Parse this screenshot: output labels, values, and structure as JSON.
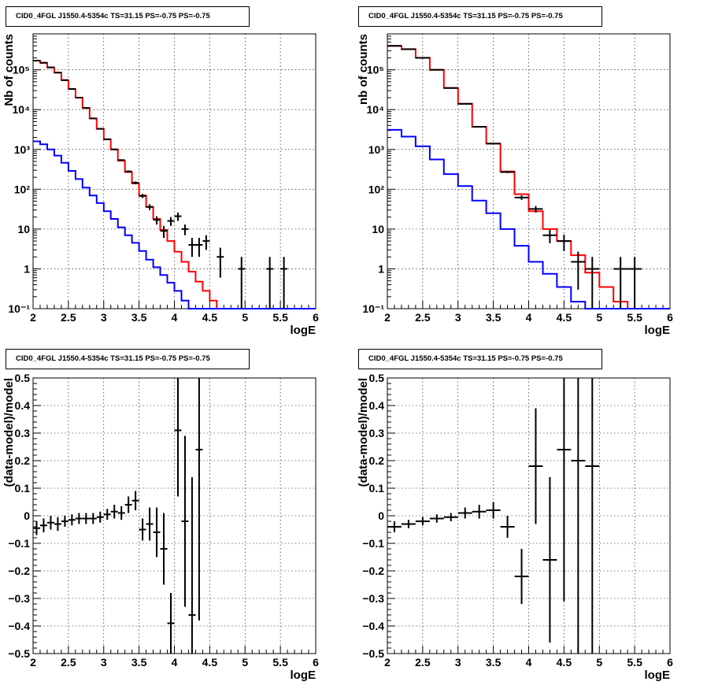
{
  "chart_data": [
    {
      "type": "line",
      "title": "CID0_4FGL J1550.4-5354c TS=31.15 PS=-0.75 PS=-0.75",
      "xlabel": "logE",
      "ylabel": "Nb of counts",
      "xlim": [
        2,
        6
      ],
      "ylim": [
        0.1,
        800000
      ],
      "y_scale": "log",
      "grid": true,
      "x_ticks": [
        "2",
        "2.5",
        "3",
        "3.5",
        "4",
        "4.5",
        "5",
        "5.5",
        "6"
      ],
      "y_ticks": [
        "10⁻¹",
        "1",
        "10",
        "10²",
        "10³",
        "10⁴",
        "10⁵"
      ],
      "bin_edges": [
        2.0,
        2.1,
        2.2,
        2.3,
        2.4,
        2.5,
        2.6,
        2.7,
        2.8,
        2.9,
        3.0,
        3.1,
        3.2,
        3.3,
        3.4,
        3.5,
        3.6,
        3.7,
        3.8,
        3.9,
        4.0,
        4.1,
        4.2,
        4.3,
        4.4,
        4.5,
        4.6,
        4.7,
        4.8,
        4.9,
        5.0,
        5.1,
        5.2,
        5.3,
        5.4,
        5.5,
        5.6,
        5.7,
        5.8,
        5.9,
        6.0
      ],
      "series": [
        {
          "color": "#ff0000",
          "values": [
            170000,
            150000,
            115000,
            85000,
            55000,
            33000,
            20000,
            11000,
            6000,
            3300,
            1800,
            1000,
            520,
            270,
            140,
            70,
            36,
            18,
            9.5,
            5,
            2.7,
            1.5,
            0.85,
            0.48,
            0.28,
            0.16,
            0.1,
            0.06,
            0.05,
            0.05,
            0.05,
            0.05,
            0.05,
            0.05,
            0.05,
            0.05,
            0.05,
            0.05,
            0.05,
            0.05
          ]
        },
        {
          "color": "#0000ff",
          "values": [
            1600,
            1350,
            1000,
            700,
            460,
            290,
            180,
            110,
            70,
            45,
            28,
            18,
            11,
            7,
            4.5,
            2.8,
            1.7,
            1.1,
            0.7,
            0.45,
            0.28,
            0.16,
            0.1,
            0.06,
            0.05,
            0.05,
            0.05,
            0.05,
            0.05,
            0.05,
            0.05,
            0.05,
            0.05,
            0.05,
            0.05,
            0.05,
            0.05,
            0.05,
            0.05,
            0.05
          ]
        }
      ],
      "points": [
        {
          "x": 2.05,
          "y": 170000,
          "xerr": 0.05,
          "ylo": 169600,
          "yhi": 170400
        },
        {
          "x": 2.15,
          "y": 150000,
          "xerr": 0.05,
          "ylo": 149600,
          "yhi": 150400
        },
        {
          "x": 2.25,
          "y": 115000,
          "xerr": 0.05,
          "ylo": 114700,
          "yhi": 115300
        },
        {
          "x": 2.35,
          "y": 85000,
          "xerr": 0.05,
          "ylo": 84700,
          "yhi": 85300
        },
        {
          "x": 2.45,
          "y": 55000,
          "xerr": 0.05,
          "ylo": 54760,
          "yhi": 55240
        },
        {
          "x": 2.55,
          "y": 33000,
          "xerr": 0.05,
          "ylo": 32800,
          "yhi": 33200
        },
        {
          "x": 2.65,
          "y": 20000,
          "xerr": 0.05,
          "ylo": 19860,
          "yhi": 20140
        },
        {
          "x": 2.75,
          "y": 11000,
          "xerr": 0.05,
          "ylo": 10900,
          "yhi": 11100
        },
        {
          "x": 2.85,
          "y": 6000,
          "xerr": 0.05,
          "ylo": 5920,
          "yhi": 6080
        },
        {
          "x": 2.95,
          "y": 3300,
          "xerr": 0.05,
          "ylo": 3240,
          "yhi": 3360
        },
        {
          "x": 3.05,
          "y": 1800,
          "xerr": 0.05,
          "ylo": 1760,
          "yhi": 1840
        },
        {
          "x": 3.15,
          "y": 1000,
          "xerr": 0.05,
          "ylo": 970,
          "yhi": 1030
        },
        {
          "x": 3.25,
          "y": 540,
          "xerr": 0.05,
          "ylo": 517,
          "yhi": 563
        },
        {
          "x": 3.35,
          "y": 280,
          "xerr": 0.05,
          "ylo": 263,
          "yhi": 297
        },
        {
          "x": 3.45,
          "y": 145,
          "xerr": 0.05,
          "ylo": 133,
          "yhi": 157
        },
        {
          "x": 3.55,
          "y": 68,
          "xerr": 0.05,
          "ylo": 60,
          "yhi": 76
        },
        {
          "x": 3.65,
          "y": 36,
          "xerr": 0.05,
          "ylo": 30,
          "yhi": 42
        },
        {
          "x": 3.75,
          "y": 17,
          "xerr": 0.05,
          "ylo": 13,
          "yhi": 21
        },
        {
          "x": 3.85,
          "y": 9,
          "xerr": 0.05,
          "ylo": 6,
          "yhi": 12
        },
        {
          "x": 3.95,
          "y": 16,
          "xerr": 0.05,
          "ylo": 12,
          "yhi": 20
        },
        {
          "x": 4.05,
          "y": 21,
          "xerr": 0.05,
          "ylo": 16,
          "yhi": 26
        },
        {
          "x": 4.15,
          "y": 10,
          "xerr": 0.05,
          "ylo": 7,
          "yhi": 13
        },
        {
          "x": 4.25,
          "y": 4,
          "xerr": 0.05,
          "ylo": 2,
          "yhi": 6
        },
        {
          "x": 4.35,
          "y": 4,
          "xerr": 0.05,
          "ylo": 2,
          "yhi": 6
        },
        {
          "x": 4.45,
          "y": 5,
          "xerr": 0.05,
          "ylo": 3,
          "yhi": 7
        },
        {
          "x": 4.65,
          "y": 2,
          "xerr": 0.05,
          "ylo": 0.6,
          "yhi": 3.4
        },
        {
          "x": 4.95,
          "y": 1,
          "xerr": 0.05,
          "ylo": 0.1,
          "yhi": 2
        },
        {
          "x": 5.35,
          "y": 1,
          "xerr": 0.05,
          "ylo": 0.1,
          "yhi": 2
        },
        {
          "x": 5.55,
          "y": 1,
          "xerr": 0.05,
          "ylo": 0.1,
          "yhi": 2
        }
      ]
    },
    {
      "type": "line",
      "title": "CID0_4FGL J1550.4-5354c TS=31.15 PS=-0.75 PS=-0.75",
      "xlabel": "logE",
      "ylabel": "nb of counts",
      "xlim": [
        2,
        6
      ],
      "ylim": [
        0.1,
        800000
      ],
      "y_scale": "log",
      "grid": true,
      "x_ticks": [
        "2",
        "2.5",
        "3",
        "3.5",
        "4",
        "4.5",
        "5",
        "5.5",
        "6"
      ],
      "y_ticks": [
        "10⁻¹",
        "1",
        "10",
        "10²",
        "10³",
        "10⁴",
        "10⁵"
      ],
      "bin_edges": [
        2.0,
        2.2,
        2.4,
        2.6,
        2.8,
        3.0,
        3.2,
        3.4,
        3.6,
        3.8,
        4.0,
        4.2,
        4.4,
        4.6,
        4.8,
        5.0,
        5.2,
        5.4,
        5.6,
        5.8,
        6.0
      ],
      "series": [
        {
          "color": "#ff0000",
          "values": [
            400000,
            330000,
            200000,
            100000,
            35000,
            14000,
            3700,
            1400,
            280,
            75,
            28,
            10,
            5,
            2.2,
            0.8,
            0.35,
            0.15,
            0.1,
            0.05,
            0.05
          ]
        },
        {
          "color": "#0000ff",
          "values": [
            3100,
            2100,
            1200,
            560,
            240,
            120,
            52,
            25,
            10,
            3.8,
            1.5,
            0.75,
            0.35,
            0.15,
            0.05,
            0.05,
            0.05,
            0.05,
            0.05,
            0.05
          ]
        }
      ],
      "points": [
        {
          "x": 2.1,
          "y": 400000,
          "xerr": 0.1,
          "ylo": 399000,
          "yhi": 401000
        },
        {
          "x": 2.3,
          "y": 330000,
          "xerr": 0.1,
          "ylo": 329000,
          "yhi": 331000
        },
        {
          "x": 2.5,
          "y": 200000,
          "xerr": 0.1,
          "ylo": 199500,
          "yhi": 200500
        },
        {
          "x": 2.7,
          "y": 100000,
          "xerr": 0.1,
          "ylo": 99700,
          "yhi": 100300
        },
        {
          "x": 2.9,
          "y": 35000,
          "xerr": 0.1,
          "ylo": 34800,
          "yhi": 35200
        },
        {
          "x": 3.1,
          "y": 14000,
          "xerr": 0.1,
          "ylo": 13880,
          "yhi": 14120
        },
        {
          "x": 3.3,
          "y": 3700,
          "xerr": 0.1,
          "ylo": 3640,
          "yhi": 3760
        },
        {
          "x": 3.5,
          "y": 1400,
          "xerr": 0.1,
          "ylo": 1360,
          "yhi": 1440
        },
        {
          "x": 3.7,
          "y": 270,
          "xerr": 0.1,
          "ylo": 254,
          "yhi": 286
        },
        {
          "x": 3.9,
          "y": 62,
          "xerr": 0.1,
          "ylo": 54,
          "yhi": 70
        },
        {
          "x": 4.1,
          "y": 32,
          "xerr": 0.1,
          "ylo": 26,
          "yhi": 38
        },
        {
          "x": 4.3,
          "y": 7,
          "xerr": 0.1,
          "ylo": 4.4,
          "yhi": 9.6
        },
        {
          "x": 4.5,
          "y": 5,
          "xerr": 0.1,
          "ylo": 2.8,
          "yhi": 7.2
        },
        {
          "x": 4.7,
          "y": 1.5,
          "xerr": 0.1,
          "ylo": 0.3,
          "yhi": 2.7
        },
        {
          "x": 4.9,
          "y": 1,
          "xerr": 0.1,
          "ylo": 0.1,
          "yhi": 2
        },
        {
          "x": 5.3,
          "y": 1,
          "xerr": 0.1,
          "ylo": 0.1,
          "yhi": 2
        },
        {
          "x": 5.5,
          "y": 1,
          "xerr": 0.1,
          "ylo": 0.1,
          "yhi": 2
        }
      ]
    },
    {
      "type": "scatter",
      "title": "CID0_4FGL J1550.4-5354c TS=31.15 PS=-0.75 PS=-0.75",
      "xlabel": "logE",
      "ylabel": "(data-model)/model",
      "xlim": [
        2,
        6
      ],
      "ylim": [
        -0.5,
        0.5
      ],
      "grid": true,
      "x_ticks": [
        "2",
        "2.5",
        "3",
        "3.5",
        "4",
        "4.5",
        "5",
        "5.5",
        "6"
      ],
      "y_ticks": [
        "−0.5",
        "−0.4",
        "−0.3",
        "−0.2",
        "−0.1",
        "0",
        "0.1",
        "0.2",
        "0.3",
        "0.4",
        "0.5"
      ],
      "points": [
        {
          "x": 2.05,
          "y": -0.045,
          "xerr": 0.05,
          "yerr": 0.025
        },
        {
          "x": 2.15,
          "y": -0.035,
          "xerr": 0.05,
          "yerr": 0.025
        },
        {
          "x": 2.25,
          "y": -0.025,
          "xerr": 0.05,
          "yerr": 0.025
        },
        {
          "x": 2.35,
          "y": -0.03,
          "xerr": 0.05,
          "yerr": 0.025
        },
        {
          "x": 2.45,
          "y": -0.02,
          "xerr": 0.05,
          "yerr": 0.02
        },
        {
          "x": 2.55,
          "y": -0.015,
          "xerr": 0.05,
          "yerr": 0.02
        },
        {
          "x": 2.65,
          "y": -0.01,
          "xerr": 0.05,
          "yerr": 0.02
        },
        {
          "x": 2.75,
          "y": -0.01,
          "xerr": 0.05,
          "yerr": 0.02
        },
        {
          "x": 2.85,
          "y": -0.01,
          "xerr": 0.05,
          "yerr": 0.02
        },
        {
          "x": 2.95,
          "y": -0.005,
          "xerr": 0.05,
          "yerr": 0.02
        },
        {
          "x": 3.05,
          "y": 0.005,
          "xerr": 0.05,
          "yerr": 0.02
        },
        {
          "x": 3.15,
          "y": 0.015,
          "xerr": 0.05,
          "yerr": 0.025
        },
        {
          "x": 3.25,
          "y": 0.01,
          "xerr": 0.05,
          "yerr": 0.025
        },
        {
          "x": 3.35,
          "y": 0.04,
          "xerr": 0.05,
          "yerr": 0.03
        },
        {
          "x": 3.45,
          "y": 0.055,
          "xerr": 0.05,
          "yerr": 0.035
        },
        {
          "x": 3.55,
          "y": -0.05,
          "xerr": 0.05,
          "yerr": 0.04
        },
        {
          "x": 3.65,
          "y": -0.03,
          "xerr": 0.05,
          "yerr": 0.06
        },
        {
          "x": 3.75,
          "y": -0.06,
          "xerr": 0.05,
          "yerr": 0.09
        },
        {
          "x": 3.85,
          "y": -0.12,
          "xerr": 0.05,
          "yerr": 0.13
        },
        {
          "x": 3.95,
          "y": -0.39,
          "xerr": 0.05,
          "yerr": 0.11
        },
        {
          "x": 4.05,
          "y": 0.31,
          "xerr": 0.05,
          "yerr": 0.24
        },
        {
          "x": 4.15,
          "y": -0.02,
          "xerr": 0.05,
          "yerr": 0.31
        },
        {
          "x": 4.25,
          "y": -0.36,
          "xerr": 0.05,
          "yerr": 0.5
        },
        {
          "x": 4.35,
          "y": 0.24,
          "xerr": 0.05,
          "yerr": 0.62
        }
      ]
    },
    {
      "type": "scatter",
      "title": "CID0_4FGL J1550.4-5354c TS=31.15 PS=-0.75 PS=-0.75",
      "xlabel": "logE",
      "ylabel": "(data-model)/model",
      "xlim": [
        2,
        6
      ],
      "ylim": [
        -0.5,
        0.5
      ],
      "grid": true,
      "x_ticks": [
        "2",
        "2.5",
        "3",
        "3.5",
        "4",
        "4.5",
        "5",
        "5.5",
        "6"
      ],
      "y_ticks": [
        "−0.5",
        "−0.4",
        "−0.3",
        "−0.2",
        "−0.1",
        "0",
        "0.1",
        "0.2",
        "0.3",
        "0.4",
        "0.5"
      ],
      "points": [
        {
          "x": 2.1,
          "y": -0.04,
          "xerr": 0.1,
          "yerr": 0.02
        },
        {
          "x": 2.3,
          "y": -0.03,
          "xerr": 0.1,
          "yerr": 0.015
        },
        {
          "x": 2.5,
          "y": -0.02,
          "xerr": 0.1,
          "yerr": 0.015
        },
        {
          "x": 2.7,
          "y": -0.01,
          "xerr": 0.1,
          "yerr": 0.015
        },
        {
          "x": 2.9,
          "y": -0.005,
          "xerr": 0.1,
          "yerr": 0.015
        },
        {
          "x": 3.1,
          "y": 0.01,
          "xerr": 0.1,
          "yerr": 0.02
        },
        {
          "x": 3.3,
          "y": 0.015,
          "xerr": 0.1,
          "yerr": 0.025
        },
        {
          "x": 3.5,
          "y": 0.02,
          "xerr": 0.1,
          "yerr": 0.03
        },
        {
          "x": 3.7,
          "y": -0.04,
          "xerr": 0.1,
          "yerr": 0.04
        },
        {
          "x": 3.9,
          "y": -0.22,
          "xerr": 0.1,
          "yerr": 0.1
        },
        {
          "x": 4.1,
          "y": 0.18,
          "xerr": 0.1,
          "yerr": 0.21
        },
        {
          "x": 4.3,
          "y": -0.16,
          "xerr": 0.1,
          "yerr": 0.3
        },
        {
          "x": 4.5,
          "y": 0.24,
          "xerr": 0.1,
          "yerr": 0.55
        },
        {
          "x": 4.7,
          "y": 0.2,
          "xerr": 0.1,
          "yerr": 0.9
        },
        {
          "x": 4.9,
          "y": 0.18,
          "xerr": 0.1,
          "yerr": 1.0
        }
      ]
    }
  ]
}
